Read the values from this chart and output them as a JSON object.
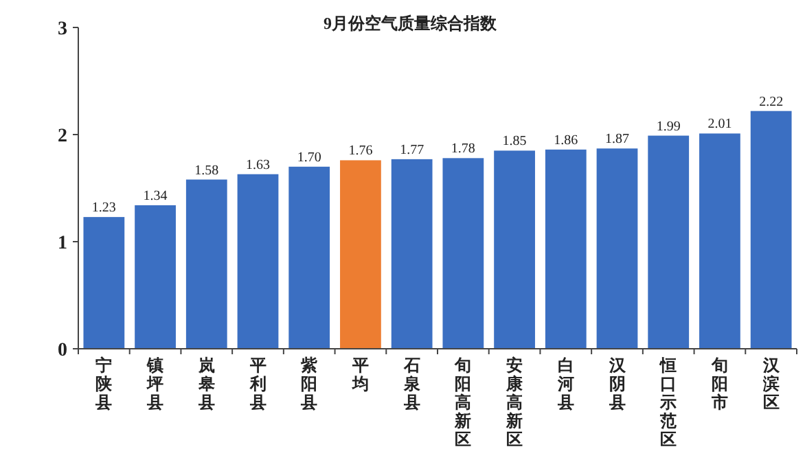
{
  "chart_data": {
    "type": "bar",
    "title": "9月份空气质量综合指数",
    "categories": [
      "宁陕县",
      "镇坪县",
      "岚皋县",
      "平利县",
      "紫阳县",
      "平均",
      "石泉县",
      "旬阳高新区",
      "安康高新区",
      "白河县",
      "汉阴县",
      "恒口示范区",
      "旬阳市",
      "汉滨区"
    ],
    "values": [
      1.23,
      1.34,
      1.58,
      1.63,
      1.7,
      1.76,
      1.77,
      1.78,
      1.85,
      1.86,
      1.87,
      1.99,
      2.01,
      2.22
    ],
    "colors": [
      "#3b6fc2",
      "#3b6fc2",
      "#3b6fc2",
      "#3b6fc2",
      "#3b6fc2",
      "#ed7d31",
      "#3b6fc2",
      "#3b6fc2",
      "#3b6fc2",
      "#3b6fc2",
      "#3b6fc2",
      "#3b6fc2",
      "#3b6fc2",
      "#3b6fc2"
    ],
    "value_labels": [
      "1.23",
      "1.34",
      "1.58",
      "1.63",
      "1.70",
      "1.76",
      "1.77",
      "1.78",
      "1.85",
      "1.86",
      "1.87",
      "1.99",
      "2.01",
      "2.22"
    ],
    "ylim": [
      0,
      3
    ],
    "yticks": [
      0,
      1,
      2,
      3
    ]
  }
}
